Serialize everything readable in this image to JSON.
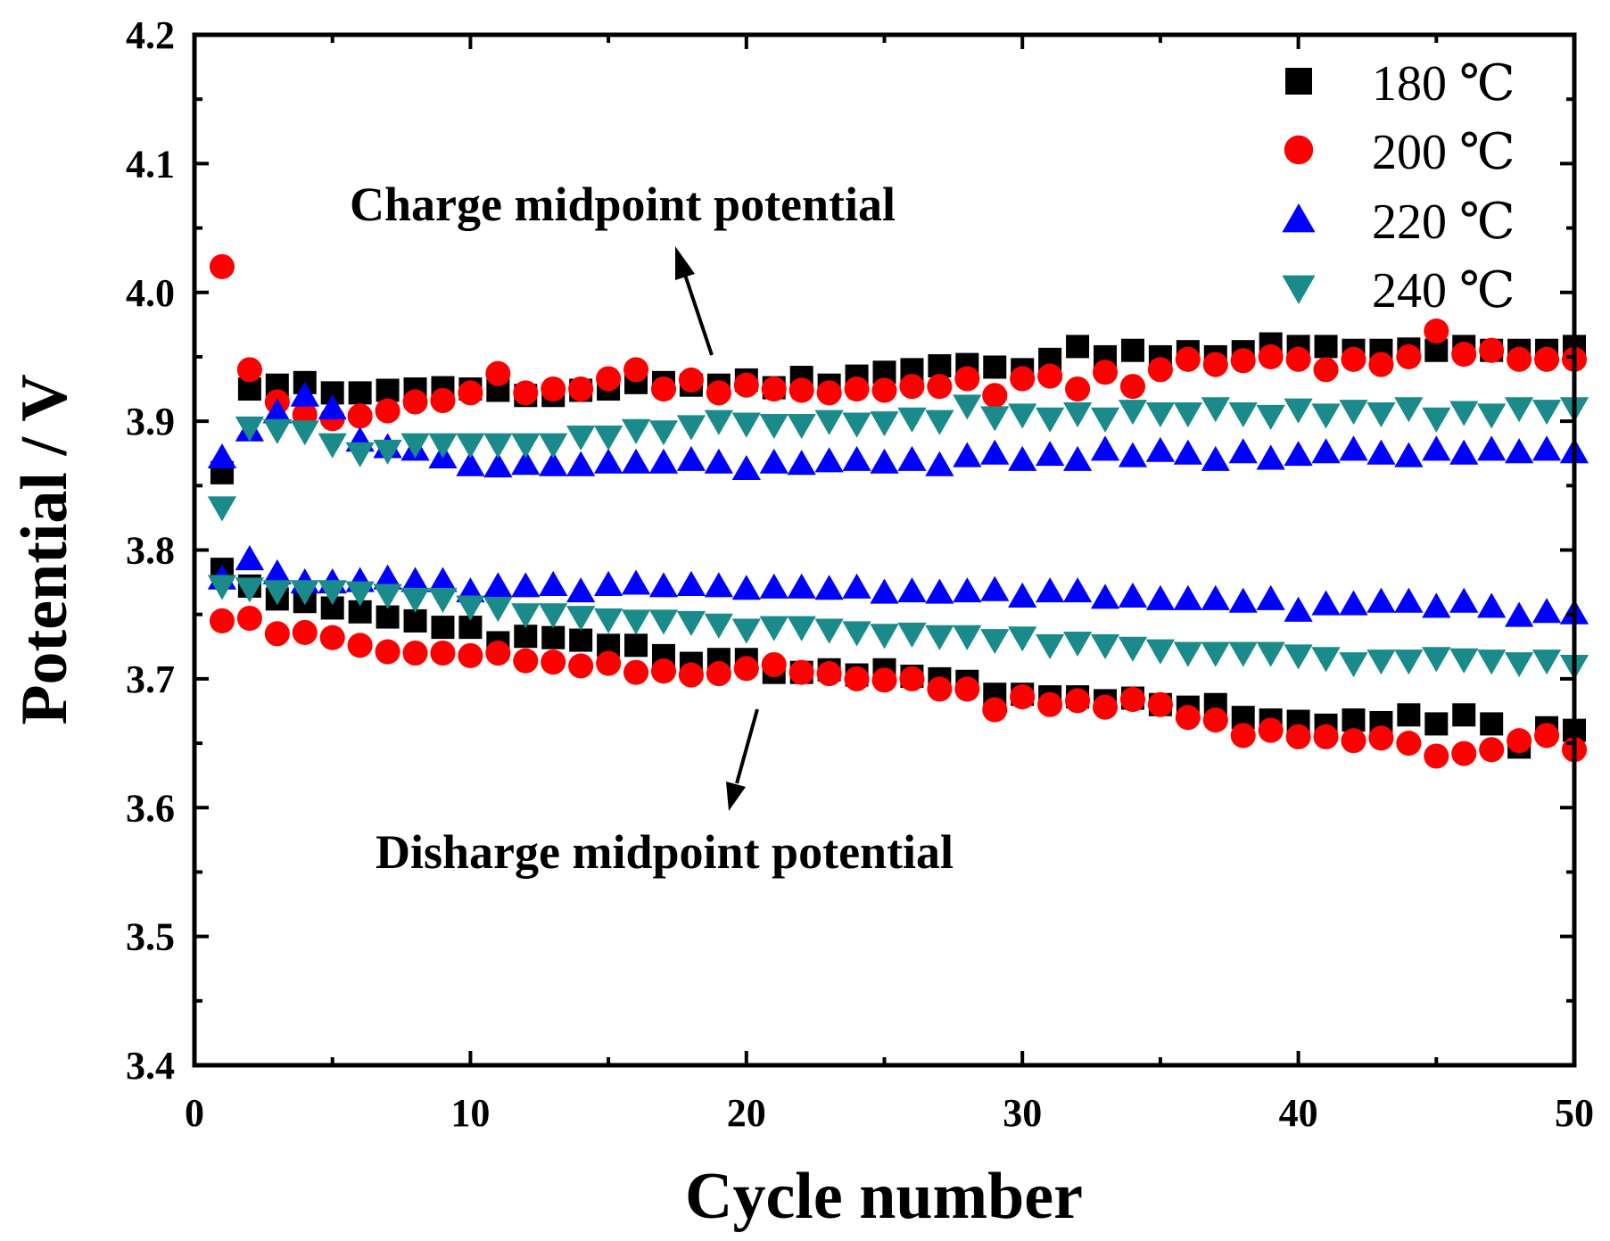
{
  "chart_data": {
    "type": "scatter",
    "xlabel": "Cycle number",
    "ylabel": "Potential / V",
    "xlim": [
      0,
      50
    ],
    "ylim": [
      3.4,
      4.2
    ],
    "xticks": [
      "0",
      "10",
      "20",
      "30",
      "40",
      "50"
    ],
    "yticks": [
      "3.4",
      "3.5",
      "3.6",
      "3.7",
      "3.8",
      "3.9",
      "4.0",
      "4.1",
      "4.2"
    ],
    "legend_position": "top-right",
    "annotations": [
      "Charge midpoint potential",
      "Disharge midpoint potential"
    ],
    "series": [
      {
        "name": "180 ℃",
        "marker": "square",
        "color": "#000000",
        "charge": [
          3.86,
          3.925,
          3.928,
          3.93,
          3.922,
          3.922,
          3.924,
          3.925,
          3.926,
          3.925,
          3.924,
          3.92,
          3.92,
          3.924,
          3.925,
          3.93,
          3.93,
          3.928,
          3.928,
          3.932,
          3.926,
          3.934,
          3.928,
          3.935,
          3.938,
          3.94,
          3.943,
          3.944,
          3.942,
          3.94,
          3.948,
          3.958,
          3.95,
          3.955,
          3.95,
          3.954,
          3.95,
          3.954,
          3.96,
          3.958,
          3.958,
          3.955,
          3.955,
          3.956,
          3.955,
          3.958,
          3.955,
          3.955,
          3.955,
          3.958
        ],
        "discharge": [
          3.785,
          3.772,
          3.762,
          3.76,
          3.755,
          3.752,
          3.748,
          3.745,
          3.74,
          3.74,
          3.728,
          3.733,
          3.732,
          3.73,
          3.726,
          3.726,
          3.718,
          3.712,
          3.715,
          3.715,
          3.705,
          3.705,
          3.707,
          3.703,
          3.707,
          3.702,
          3.7,
          3.698,
          3.688,
          3.688,
          3.686,
          3.686,
          3.683,
          3.685,
          3.68,
          3.678,
          3.68,
          3.67,
          3.668,
          3.667,
          3.664,
          3.668,
          3.666,
          3.672,
          3.665,
          3.672,
          3.665,
          3.647,
          3.662,
          3.66
        ]
      },
      {
        "name": "200 ℃",
        "marker": "circle",
        "color": "#ff0000",
        "charge": [
          4.02,
          3.94,
          3.915,
          3.905,
          3.902,
          3.904,
          3.908,
          3.915,
          3.916,
          3.922,
          3.937,
          3.922,
          3.925,
          3.925,
          3.933,
          3.94,
          3.925,
          3.932,
          3.922,
          3.928,
          3.925,
          3.924,
          3.922,
          3.925,
          3.924,
          3.927,
          3.927,
          3.933,
          3.92,
          3.933,
          3.935,
          3.925,
          3.938,
          3.927,
          3.94,
          3.948,
          3.944,
          3.947,
          3.95,
          3.948,
          3.94,
          3.948,
          3.944,
          3.95,
          3.97,
          3.952,
          3.955,
          3.948,
          3.948,
          3.948
        ],
        "discharge": [
          3.745,
          3.747,
          3.735,
          3.736,
          3.732,
          3.726,
          3.721,
          3.72,
          3.72,
          3.718,
          3.72,
          3.714,
          3.713,
          3.71,
          3.712,
          3.705,
          3.706,
          3.703,
          3.704,
          3.708,
          3.711,
          3.705,
          3.704,
          3.7,
          3.699,
          3.7,
          3.692,
          3.692,
          3.676,
          3.686,
          3.68,
          3.683,
          3.678,
          3.684,
          3.68,
          3.67,
          3.668,
          3.656,
          3.66,
          3.655,
          3.655,
          3.652,
          3.654,
          3.65,
          3.64,
          3.642,
          3.645,
          3.652,
          3.656,
          3.645
        ]
      },
      {
        "name": "220 ℃",
        "marker": "triangle-up",
        "color": "#0000ff",
        "charge": [
          3.872,
          3.893,
          3.907,
          3.92,
          3.91,
          3.885,
          3.88,
          3.878,
          3.872,
          3.866,
          3.865,
          3.867,
          3.866,
          3.866,
          3.868,
          3.868,
          3.868,
          3.87,
          3.868,
          3.863,
          3.868,
          3.867,
          3.869,
          3.87,
          3.868,
          3.87,
          3.866,
          3.873,
          3.875,
          3.87,
          3.874,
          3.87,
          3.878,
          3.873,
          3.877,
          3.875,
          3.87,
          3.876,
          3.871,
          3.874,
          3.876,
          3.878,
          3.875,
          3.873,
          3.878,
          3.875,
          3.878,
          3.876,
          3.878,
          3.876
        ],
        "discharge": [
          3.778,
          3.793,
          3.782,
          3.775,
          3.775,
          3.776,
          3.778,
          3.776,
          3.776,
          3.768,
          3.772,
          3.772,
          3.773,
          3.768,
          3.773,
          3.774,
          3.772,
          3.773,
          3.772,
          3.77,
          3.771,
          3.771,
          3.77,
          3.771,
          3.767,
          3.768,
          3.767,
          3.768,
          3.769,
          3.764,
          3.768,
          3.768,
          3.763,
          3.764,
          3.762,
          3.762,
          3.762,
          3.76,
          3.762,
          3.753,
          3.758,
          3.758,
          3.76,
          3.76,
          3.756,
          3.76,
          3.756,
          3.749,
          3.752,
          3.751
        ]
      },
      {
        "name": "240 ℃",
        "marker": "triangle-down",
        "color": "#1a8a8a",
        "charge": [
          3.833,
          3.895,
          3.893,
          3.892,
          3.882,
          3.875,
          3.877,
          3.882,
          3.882,
          3.882,
          3.882,
          3.882,
          3.882,
          3.888,
          3.888,
          3.893,
          3.892,
          3.896,
          3.9,
          3.898,
          3.897,
          3.897,
          3.9,
          3.898,
          3.899,
          3.902,
          3.9,
          3.912,
          3.903,
          3.905,
          3.902,
          3.906,
          3.902,
          3.908,
          3.906,
          3.906,
          3.91,
          3.906,
          3.904,
          3.909,
          3.905,
          3.908,
          3.906,
          3.91,
          3.902,
          3.907,
          3.905,
          3.91,
          3.908,
          3.91
        ],
        "discharge": [
          3.772,
          3.77,
          3.768,
          3.768,
          3.768,
          3.767,
          3.765,
          3.762,
          3.762,
          3.756,
          3.755,
          3.75,
          3.75,
          3.748,
          3.746,
          3.745,
          3.745,
          3.744,
          3.742,
          3.738,
          3.74,
          3.74,
          3.738,
          3.736,
          3.734,
          3.735,
          3.733,
          3.733,
          3.73,
          3.732,
          3.726,
          3.728,
          3.726,
          3.724,
          3.722,
          3.72,
          3.72,
          3.72,
          3.72,
          3.718,
          3.716,
          3.712,
          3.714,
          3.714,
          3.716,
          3.715,
          3.714,
          3.712,
          3.714,
          3.71
        ]
      }
    ]
  }
}
